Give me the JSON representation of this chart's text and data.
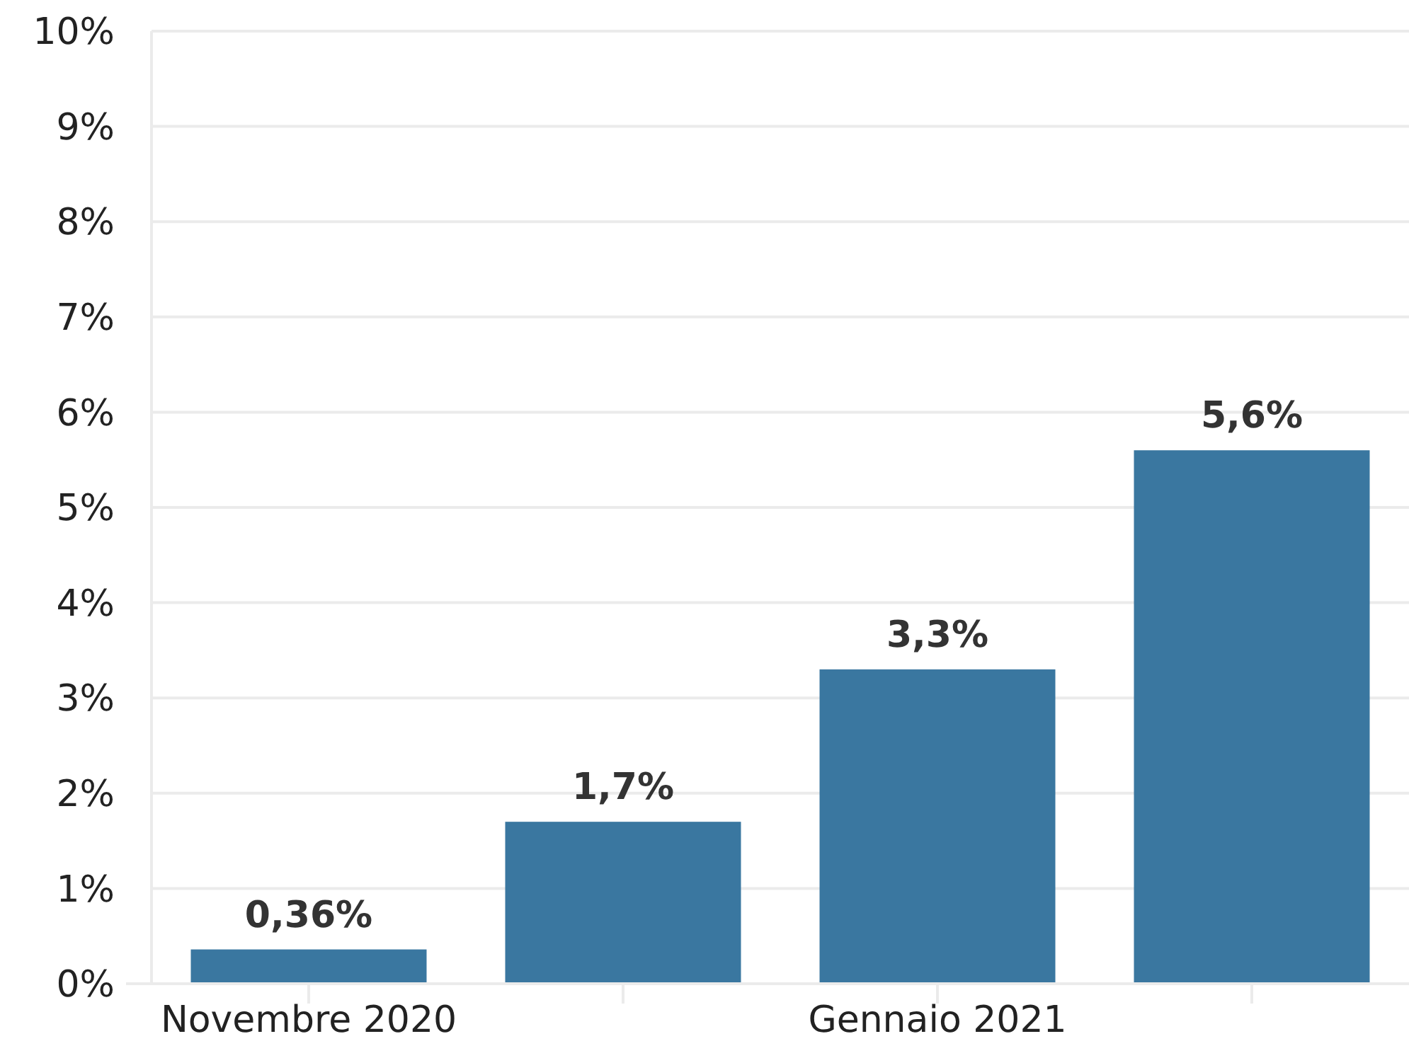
{
  "chart_data": {
    "type": "bar",
    "categories": [
      "Novembre 2020",
      null,
      "Gennaio 2021",
      null
    ],
    "values": [
      0.36,
      1.7,
      3.3,
      5.6
    ],
    "color": "#3a77a0",
    "value_labels": [
      "0,36%",
      "1,7%",
      "3,3%",
      "5,6%"
    ],
    "ylim": [
      0,
      10
    ],
    "yticks": [
      {
        "value": 0,
        "label": "0%"
      },
      {
        "value": 1,
        "label": "1%"
      },
      {
        "value": 2,
        "label": "2%"
      },
      {
        "value": 3,
        "label": "3%"
      },
      {
        "value": 4,
        "label": "4%"
      },
      {
        "value": 5,
        "label": "5%"
      },
      {
        "value": 6,
        "label": "6%"
      },
      {
        "value": 7,
        "label": "7%"
      },
      {
        "value": 8,
        "label": "8%"
      },
      {
        "value": 9,
        "label": "9%"
      },
      {
        "value": 10,
        "label": "10%"
      }
    ],
    "grid": "y"
  }
}
